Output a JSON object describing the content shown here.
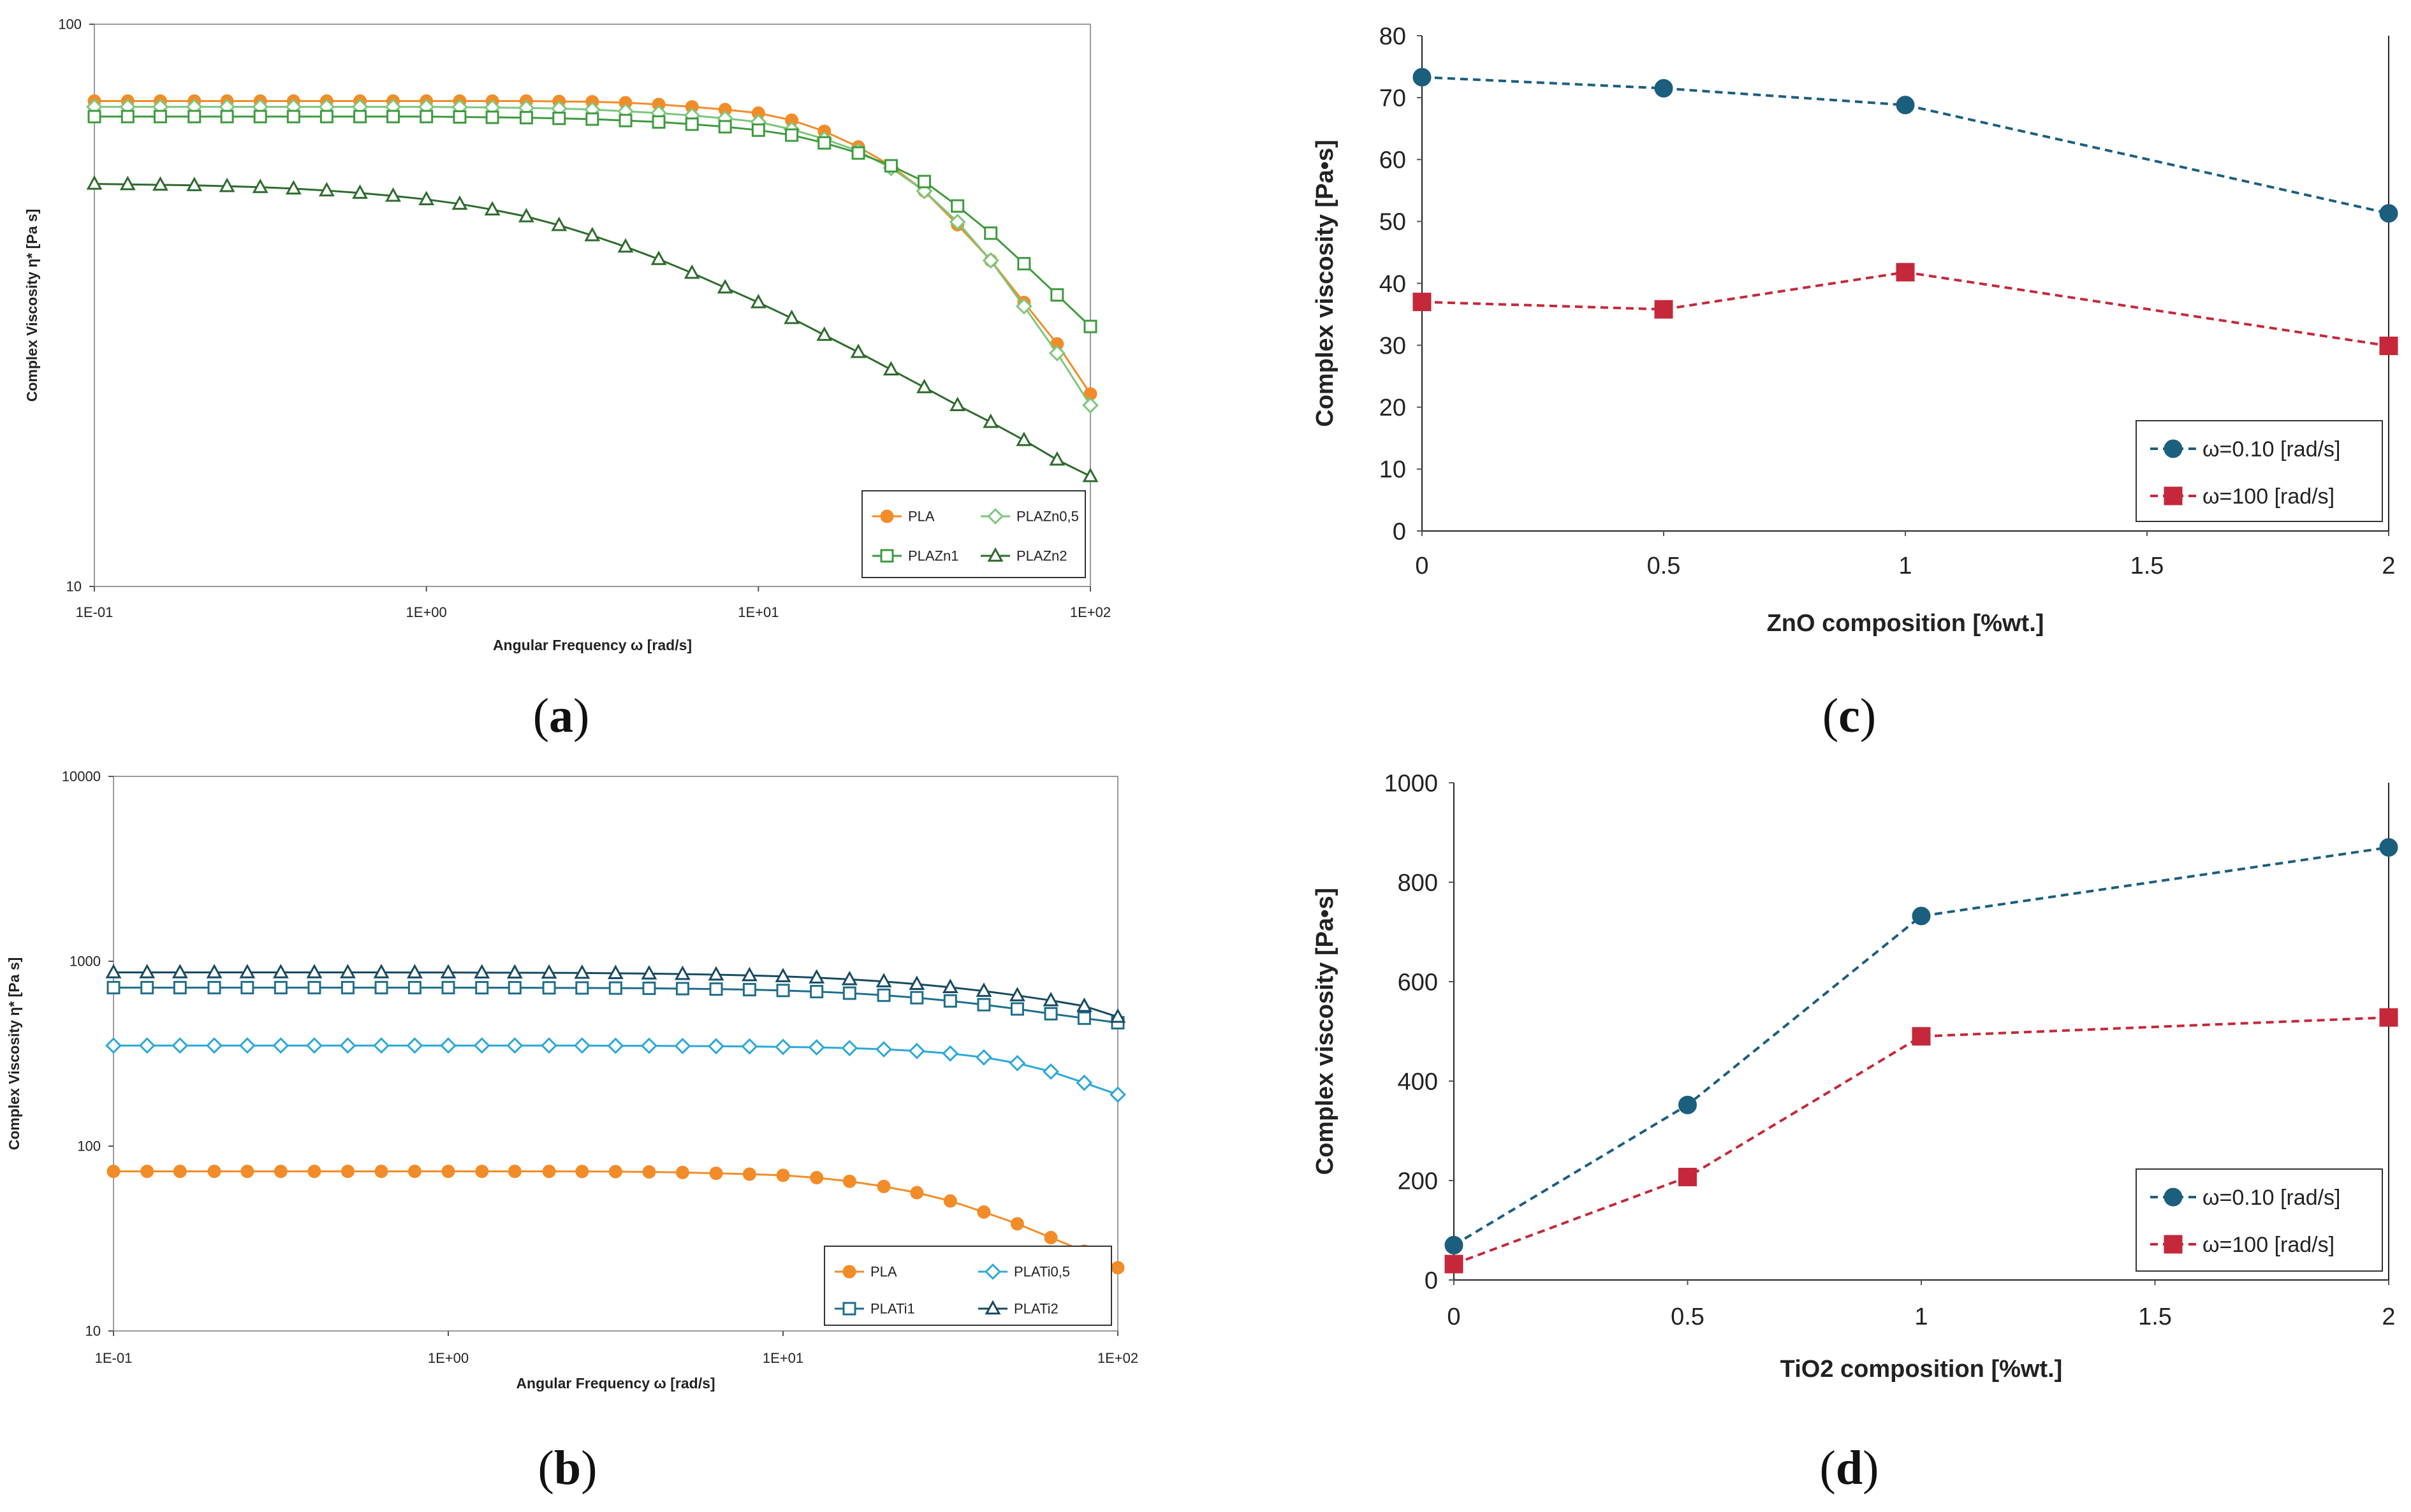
{
  "captions": [
    "a",
    "b",
    "c",
    "d"
  ],
  "chart_data": [
    {
      "id": "a",
      "type": "line",
      "xscale": "log",
      "yscale": "log",
      "xlabel": "Angular Frequency ω [rad/s]",
      "ylabel": "Complex Viscosity η* [Pa s]",
      "xlim": [
        0.1,
        100
      ],
      "ylim": [
        10,
        100
      ],
      "xticks": [
        0.1,
        1,
        10,
        100
      ],
      "xtick_labels": [
        "1E-01",
        "1E+00",
        "1E+01",
        "1E+02"
      ],
      "yticks": [
        10,
        100
      ],
      "ytick_labels": [
        "10",
        "100"
      ],
      "legend_position": "bottom-right",
      "freq": [
        0.1,
        0.126,
        0.158,
        0.2,
        0.251,
        0.316,
        0.398,
        0.501,
        0.631,
        0.794,
        1,
        1.26,
        1.58,
        2,
        2.51,
        3.16,
        3.98,
        5.01,
        6.31,
        7.94,
        10,
        12.6,
        15.8,
        20,
        25.1,
        31.6,
        39.8,
        50.1,
        63.1,
        79.4,
        100
      ],
      "series": [
        {
          "name": "PLA",
          "color": "#F28C28",
          "marker": "circle",
          "fill": true,
          "values": [
            73,
            73,
            73,
            73,
            73,
            73,
            73,
            73,
            73,
            73,
            73,
            73,
            73,
            73,
            72.9,
            72.8,
            72.5,
            72,
            71.3,
            70.5,
            69.5,
            67.5,
            64.5,
            60.5,
            56,
            50.5,
            44,
            38,
            32,
            27,
            22
          ]
        },
        {
          "name": "PLAZn0,5",
          "color": "#7DC67D",
          "marker": "diamond",
          "fill": false,
          "values": [
            71.3,
            71.3,
            71.3,
            71.3,
            71.3,
            71.3,
            71.3,
            71.3,
            71.3,
            71.3,
            71.3,
            71.2,
            71.1,
            71,
            70.8,
            70.5,
            70,
            69.5,
            68.8,
            68,
            67,
            65,
            62.5,
            59.5,
            55.5,
            50.5,
            44.5,
            38,
            31.5,
            26,
            21
          ]
        },
        {
          "name": "PLAZn1",
          "color": "#3E9A3E",
          "marker": "square",
          "fill": false,
          "values": [
            68.5,
            68.5,
            68.5,
            68.5,
            68.5,
            68.5,
            68.5,
            68.5,
            68.5,
            68.5,
            68.5,
            68.4,
            68.3,
            68.2,
            68,
            67.8,
            67.4,
            67,
            66.4,
            65.7,
            64.8,
            63.5,
            61.5,
            59,
            56,
            52.5,
            47.5,
            42.5,
            37.5,
            33,
            29
          ]
        },
        {
          "name": "PLAZn2",
          "color": "#2E6B2E",
          "marker": "triangle",
          "fill": false,
          "values": [
            52,
            51.9,
            51.8,
            51.7,
            51.5,
            51.3,
            51,
            50.6,
            50.1,
            49.5,
            48.8,
            47.9,
            46.8,
            45.5,
            43.9,
            42.1,
            40.2,
            38.2,
            36.1,
            34,
            32,
            30,
            28,
            26.1,
            24.3,
            22.6,
            21,
            19.6,
            18.2,
            16.8,
            15.7
          ]
        }
      ]
    },
    {
      "id": "b",
      "type": "line",
      "xscale": "log",
      "yscale": "log",
      "xlabel": "Angular Frequency ω [rad/s]",
      "ylabel": "Complex Viscosity η* [Pa s]",
      "xlim": [
        0.1,
        100
      ],
      "ylim": [
        10,
        10000
      ],
      "xticks": [
        0.1,
        1,
        10,
        100
      ],
      "xtick_labels": [
        "1E-01",
        "1E+00",
        "1E+01",
        "1E+02"
      ],
      "yticks": [
        10,
        100,
        1000,
        10000
      ],
      "ytick_labels": [
        "10",
        "100",
        "1000",
        "10000"
      ],
      "legend_position": "bottom-right",
      "freq": [
        0.1,
        0.126,
        0.158,
        0.2,
        0.251,
        0.316,
        0.398,
        0.501,
        0.631,
        0.794,
        1,
        1.26,
        1.58,
        2,
        2.51,
        3.16,
        3.98,
        5.01,
        6.31,
        7.94,
        10,
        12.6,
        15.8,
        20,
        25.1,
        31.6,
        39.8,
        50.1,
        63.1,
        79.4,
        100
      ],
      "series": [
        {
          "name": "PLA",
          "color": "#F28C28",
          "marker": "circle",
          "fill": true,
          "values": [
            73,
            73,
            73,
            73,
            73,
            73,
            73,
            73,
            73,
            73,
            73,
            73,
            73,
            73,
            72.9,
            72.8,
            72.5,
            72,
            71.3,
            70.5,
            69.5,
            67.5,
            64.5,
            60.5,
            56,
            50.5,
            44,
            38,
            32,
            27,
            22
          ]
        },
        {
          "name": "PLATi0,5",
          "color": "#2BA8D8",
          "marker": "diamond",
          "fill": false,
          "values": [
            350,
            350,
            350,
            350,
            350,
            350,
            350,
            350,
            350,
            350,
            350,
            350,
            350,
            350,
            350,
            349,
            349,
            348,
            347,
            346,
            344,
            342,
            339,
            334,
            327,
            317,
            302,
            281,
            253,
            220,
            190
          ]
        },
        {
          "name": "PLATi1",
          "color": "#1F6E8C",
          "marker": "square",
          "fill": false,
          "values": [
            720,
            720,
            720,
            720,
            720,
            720,
            720,
            720,
            720,
            720,
            720,
            719,
            719,
            718,
            717,
            716,
            714,
            711,
            707,
            702,
            695,
            685,
            672,
            655,
            635,
            610,
            582,
            552,
            520,
            492,
            465
          ]
        },
        {
          "name": "PLATi2",
          "color": "#174A60",
          "marker": "triangle",
          "fill": false,
          "values": [
            870,
            870,
            870,
            870,
            870,
            870,
            870,
            870,
            870,
            869,
            869,
            868,
            867,
            866,
            864,
            861,
            857,
            852,
            846,
            838,
            828,
            815,
            798,
            777,
            752,
            723,
            690,
            653,
            614,
            572,
            500
          ]
        }
      ]
    },
    {
      "id": "c",
      "type": "line",
      "xlabel": "ZnO composition [%wt.]",
      "ylabel": "Complex viscosity [Pa•s]",
      "xlim": [
        0,
        2
      ],
      "ylim": [
        0,
        80
      ],
      "xticks": [
        0,
        0.5,
        1,
        1.5,
        2
      ],
      "xtick_labels": [
        "0",
        "0.5",
        "1",
        "1.5",
        "2"
      ],
      "yticks": [
        0,
        10,
        20,
        30,
        40,
        50,
        60,
        70,
        80
      ],
      "ytick_labels": [
        "0",
        "10",
        "20",
        "30",
        "40",
        "50",
        "60",
        "70",
        "80"
      ],
      "legend_position": "bottom-right",
      "x": [
        0,
        0.5,
        1,
        2
      ],
      "series": [
        {
          "name": "ω=0.10 [rad/s]",
          "color": "#1B5E7E",
          "marker": "circle",
          "values": [
            73.3,
            71.5,
            68.8,
            51.3
          ]
        },
        {
          "name": "ω=100 [rad/s]",
          "color": "#C4283A",
          "marker": "square",
          "values": [
            37,
            35.8,
            41.8,
            29.9
          ]
        }
      ]
    },
    {
      "id": "d",
      "type": "line",
      "xlabel": "TiO2 composition [%wt.]",
      "ylabel": "Complex viscosity [Pa•s]",
      "xlim": [
        0,
        2
      ],
      "ylim": [
        0,
        1000
      ],
      "xticks": [
        0,
        0.5,
        1,
        1.5,
        2
      ],
      "xtick_labels": [
        "0",
        "0.5",
        "1",
        "1.5",
        "2"
      ],
      "yticks": [
        0,
        200,
        400,
        600,
        800,
        1000
      ],
      "ytick_labels": [
        "0",
        "200",
        "400",
        "600",
        "800",
        "1000"
      ],
      "legend_position": "bottom-right",
      "x": [
        0,
        0.5,
        1,
        2
      ],
      "series": [
        {
          "name": "ω=0.10 [rad/s]",
          "color": "#1B5E7E",
          "marker": "circle",
          "values": [
            70,
            352,
            732,
            870
          ]
        },
        {
          "name": "ω=100 [rad/s]",
          "color": "#C4283A",
          "marker": "square",
          "values": [
            32,
            207,
            490,
            528
          ]
        }
      ]
    }
  ]
}
